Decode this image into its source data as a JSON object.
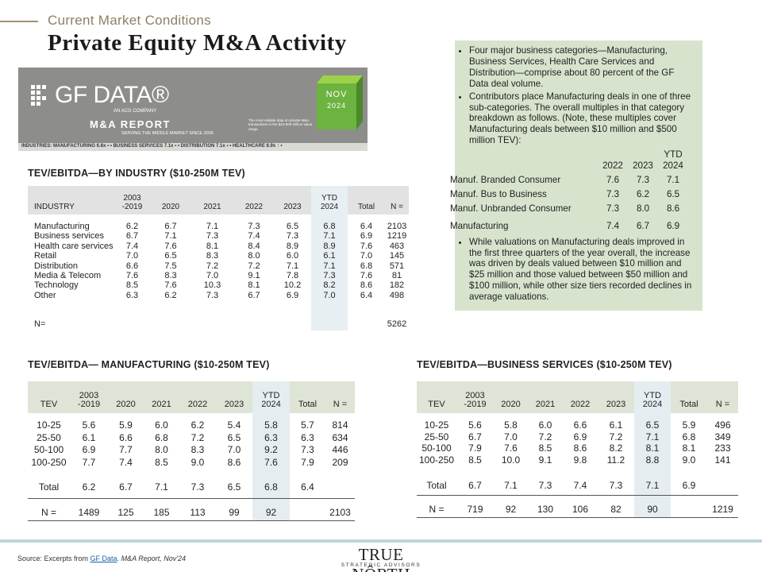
{
  "header": {
    "kicker": "Current Market Conditions",
    "title": "Private Equity M&A Activity"
  },
  "banner": {
    "logo": "GF DATA®",
    "logo_sub": "AN ACG COMPANY",
    "report": "M&A REPORT",
    "tagline": "SERVING THE MIDDLE MARKET SINCE 2006",
    "blurb": "The most reliable data on private M&A transactions in the $10-500 million value range.",
    "month": "NOV",
    "year": "2024",
    "strip": "INDUSTRIES:  MANUFACTURING 6.8x ▪  •  BUSINESS SERVICES 7.1x ▪  •  DISTRIBUTION 7.1x ▪  •  HEALTHCARE 8.9x ↑  •"
  },
  "tables": [
    {
      "title": "TEV/EBITDA—BY INDUSTRY ($10-250M TEV)",
      "header": [
        "INDUSTRY",
        "2003\n-2019",
        "2020",
        "2021",
        "2022",
        "2023",
        "YTD\n2024",
        "Total",
        "N ="
      ],
      "rows": [
        {
          "label": "Manufacturing",
          "values": [
            "6.2",
            "6.7",
            "7.1",
            "7.3",
            "6.5",
            "6.8",
            "6.4",
            "2103"
          ]
        },
        {
          "label": "Business services",
          "values": [
            "6.7",
            "7.1",
            "7.3",
            "7.4",
            "7.3",
            "7.1",
            "6.9",
            "1219"
          ]
        },
        {
          "label": "Health care services",
          "values": [
            "7.4",
            "7.6",
            "8.1",
            "8.4",
            "8.9",
            "8.9",
            "7.6",
            "463"
          ]
        },
        {
          "label": "Retail",
          "values": [
            "7.0",
            "6.5",
            "8.3",
            "8.0",
            "6.0",
            "6.1",
            "7.0",
            "145"
          ]
        },
        {
          "label": "Distribution",
          "values": [
            "6.6",
            "7.5",
            "7.2",
            "7.2",
            "7.1",
            "7.1",
            "6.8",
            "571"
          ]
        },
        {
          "label": "Media & Telecom",
          "values": [
            "7.6",
            "8.3",
            "7.0",
            "9.1",
            "7.8",
            "7.3",
            "7.6",
            "81"
          ]
        },
        {
          "label": "Technology",
          "values": [
            "8.5",
            "7.6",
            "10.3",
            "8.1",
            "10.2",
            "8.2",
            "8.6",
            "182"
          ]
        },
        {
          "label": "Other",
          "values": [
            "6.3",
            "6.2",
            "7.3",
            "6.7",
            "6.9",
            "7.0",
            "6.4",
            "498"
          ]
        }
      ],
      "count": {
        "label": "N=",
        "n": "5262"
      }
    },
    {
      "title": "TEV/EBITDA— MANUFACTURING ($10-250M TEV)",
      "header": [
        "TEV",
        "2003\n-2019",
        "2020",
        "2021",
        "2022",
        "2023",
        "YTD\n2024",
        "Total",
        "N ="
      ],
      "rows": [
        {
          "label": "10-25",
          "values": [
            "5.6",
            "5.9",
            "6.0",
            "6.2",
            "5.4",
            "5.8",
            "5.7",
            "814"
          ]
        },
        {
          "label": "25-50",
          "values": [
            "6.1",
            "6.6",
            "6.8",
            "7.2",
            "6.5",
            "6.3",
            "6.3",
            "634"
          ]
        },
        {
          "label": "50-100",
          "values": [
            "6.9",
            "7.7",
            "8.0",
            "8.3",
            "7.0",
            "9.2",
            "7.3",
            "446"
          ]
        },
        {
          "label": "100-250",
          "values": [
            "7.7",
            "7.4",
            "8.5",
            "9.0",
            "8.6",
            "7.6",
            "7.9",
            "209"
          ]
        }
      ],
      "total": {
        "label": "Total",
        "values": [
          "6.2",
          "6.7",
          "7.1",
          "7.3",
          "6.5",
          "6.8",
          "6.4"
        ]
      },
      "count": {
        "label": "N =",
        "values": [
          "1489",
          "125",
          "185",
          "113",
          "99",
          "92"
        ],
        "n": "2103"
      }
    },
    {
      "title": "TEV/EBITDA—BUSINESS SERVICES ($10-250M TEV)",
      "header": [
        "TEV",
        "2003\n-2019",
        "2020",
        "2021",
        "2022",
        "2023",
        "YTD\n2024",
        "Total",
        "N ="
      ],
      "rows": [
        {
          "label": "10-25",
          "values": [
            "5.6",
            "5.8",
            "6.0",
            "6.6",
            "6.1",
            "6.5",
            "5.9",
            "496"
          ]
        },
        {
          "label": "25-50",
          "values": [
            "6.7",
            "7.0",
            "7.2",
            "6.9",
            "7.2",
            "7.1",
            "6.8",
            "349"
          ]
        },
        {
          "label": "50-100",
          "values": [
            "7.9",
            "7.6",
            "8.5",
            "8.6",
            "8.2",
            "8.1",
            "8.1",
            "233"
          ]
        },
        {
          "label": "100-250",
          "values": [
            "8.5",
            "10.0",
            "9.1",
            "9.8",
            "11.2",
            "8.8",
            "9.0",
            "141"
          ]
        }
      ],
      "total": {
        "label": "Total",
        "values": [
          "6.7",
          "7.1",
          "7.3",
          "7.4",
          "7.3",
          "7.1",
          "6.9"
        ]
      },
      "count": {
        "label": "N =",
        "values": [
          "719",
          "92",
          "130",
          "106",
          "82",
          "90"
        ],
        "n": "1219"
      }
    }
  ],
  "sidebar": {
    "bullets": [
      "Four major business categories—Manufacturing, Business Services, Health Care Services and Distribution—comprise about 80 percent of the GF Data deal volume.",
      "Contributors place Manufacturing deals in one of three sub-categories. The overall multiples in that category breakdown as follows. (Note, these multiples cover Manufacturing deals between $10 million and $500 million TEV):",
      "While valuations on Manufacturing deals improved in the first three quarters of the year overall, the increase was driven by deals valued between $10 million and $25 million and those valued between $50 million and $100 million, while other size tiers recorded declines in average valuations."
    ],
    "table": {
      "header": [
        "2022",
        "2023",
        "YTD\n2024"
      ],
      "rows": [
        {
          "label": "Manuf. Branded Consumer",
          "values": [
            "7.6",
            "7.3",
            "7.1"
          ]
        },
        {
          "label": "Manuf. Bus to Business",
          "values": [
            "7.3",
            "6.2",
            "6.5"
          ]
        },
        {
          "label": "Manuf. Unbranded Consumer",
          "values": [
            "7.3",
            "8.0",
            "8.6"
          ]
        },
        {
          "label": "Manufacturing",
          "values": [
            "7.4",
            "6.7",
            "6.9"
          ]
        }
      ]
    }
  },
  "footer": {
    "source_prefix": "Source: Excerpts from ",
    "source_link": "GF Data",
    "source_sep": ". ",
    "source_report": "M&A Report, Nov'24",
    "brand": "TRUE NÔRTH",
    "brand_sub": "STRATEGIC ADVISORS"
  }
}
